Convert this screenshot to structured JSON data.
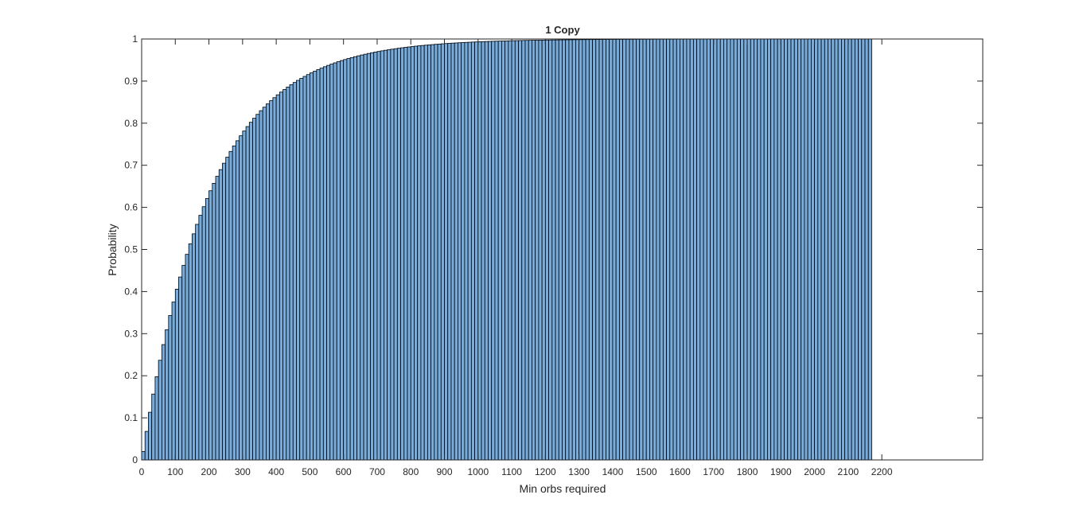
{
  "chart_data": {
    "type": "bar",
    "title": "1 Copy",
    "xlabel": "Min orbs required",
    "ylabel": "Probability",
    "xlim": [
      0,
      2500
    ],
    "ylim": [
      0,
      1
    ],
    "bin_width": 10,
    "bin_start": 0,
    "bin_count": 217,
    "cdf_model": {
      "y0": 0.02,
      "decay_per_orb": 0.005
    },
    "xticks": [
      "0",
      "100",
      "200",
      "300",
      "400",
      "500",
      "600",
      "700",
      "800",
      "900",
      "1000",
      "1100",
      "1200",
      "1300",
      "1400",
      "1500",
      "1600",
      "1700",
      "1800",
      "1900",
      "2000",
      "2100",
      "2200"
    ],
    "xtick_values": [
      0,
      100,
      200,
      300,
      400,
      500,
      600,
      700,
      800,
      900,
      1000,
      1100,
      1200,
      1300,
      1400,
      1500,
      1600,
      1700,
      1800,
      1900,
      2000,
      2100,
      2200
    ],
    "yticks": [
      "0",
      "0.1",
      "0.2",
      "0.3",
      "0.4",
      "0.5",
      "0.6",
      "0.7",
      "0.8",
      "0.9",
      "1"
    ],
    "ytick_values": [
      0,
      0.1,
      0.2,
      0.3,
      0.4,
      0.5,
      0.6,
      0.7,
      0.8,
      0.9,
      1
    ],
    "grid": false,
    "colors": {
      "bar_fill": "#77acdc",
      "bar_edge": "#000000",
      "axis": "#262626"
    }
  }
}
